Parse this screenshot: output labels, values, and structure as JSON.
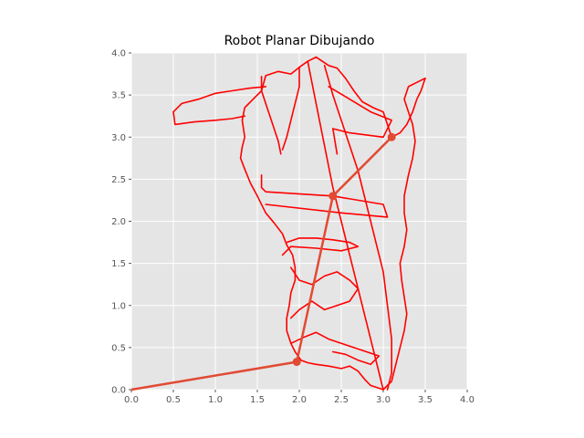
{
  "chart_data": {
    "type": "line",
    "title": "Robot Planar Dibujando",
    "xlabel": "",
    "ylabel": "",
    "xlim": [
      0,
      4
    ],
    "ylim": [
      0,
      4
    ],
    "xticks": [
      "0.0",
      "0.5",
      "1.0",
      "1.5",
      "2.0",
      "2.5",
      "3.0",
      "3.5",
      "4.0"
    ],
    "yticks": [
      "0.0",
      "0.5",
      "1.0",
      "1.5",
      "2.0",
      "2.5",
      "3.0",
      "3.5",
      "4.0"
    ],
    "grid": true,
    "series": [
      {
        "color": "#ff0000",
        "points": [
          [
            3.1,
            3.0
          ],
          [
            3.0,
            3.3
          ],
          [
            2.88,
            3.35
          ],
          [
            2.75,
            3.42
          ],
          [
            2.65,
            3.55
          ],
          [
            2.55,
            3.7
          ],
          [
            2.45,
            3.82
          ],
          [
            2.35,
            3.85
          ],
          [
            2.2,
            3.95
          ],
          [
            2.1,
            3.9
          ],
          [
            2.0,
            3.83
          ],
          [
            1.9,
            3.75
          ],
          [
            1.75,
            3.78
          ],
          [
            1.6,
            3.73
          ],
          [
            1.55,
            3.55
          ],
          [
            1.45,
            3.45
          ],
          [
            1.35,
            3.35
          ],
          [
            1.32,
            3.2
          ],
          [
            1.35,
            3.0
          ],
          [
            1.32,
            2.88
          ],
          [
            1.3,
            2.75
          ],
          [
            1.35,
            2.62
          ],
          [
            1.42,
            2.45
          ],
          [
            1.5,
            2.3
          ],
          [
            1.6,
            2.1
          ],
          [
            1.7,
            1.98
          ],
          [
            1.8,
            1.85
          ],
          [
            1.85,
            1.72
          ],
          [
            1.92,
            1.6
          ],
          [
            1.95,
            1.45
          ],
          [
            1.95,
            1.3
          ],
          [
            1.9,
            1.15
          ],
          [
            1.88,
            1.0
          ],
          [
            1.85,
            0.85
          ],
          [
            1.85,
            0.7
          ],
          [
            1.9,
            0.55
          ],
          [
            1.95,
            0.45
          ],
          [
            2.02,
            0.35
          ],
          [
            2.1,
            0.32
          ],
          [
            2.2,
            0.3
          ],
          [
            2.35,
            0.28
          ],
          [
            2.5,
            0.25
          ],
          [
            2.6,
            0.28
          ],
          [
            2.7,
            0.22
          ],
          [
            2.78,
            0.12
          ],
          [
            2.85,
            0.05
          ],
          [
            3.0,
            0.0
          ],
          [
            3.1,
            0.1
          ],
          [
            3.15,
            0.3
          ],
          [
            3.2,
            0.5
          ],
          [
            3.25,
            0.7
          ],
          [
            3.28,
            0.9
          ],
          [
            3.25,
            1.1
          ],
          [
            3.22,
            1.3
          ],
          [
            3.2,
            1.5
          ],
          [
            3.25,
            1.7
          ],
          [
            3.28,
            1.9
          ],
          [
            3.25,
            2.1
          ],
          [
            3.25,
            2.3
          ],
          [
            3.3,
            2.55
          ],
          [
            3.35,
            2.75
          ],
          [
            3.38,
            2.95
          ],
          [
            3.35,
            3.15
          ],
          [
            3.3,
            3.3
          ],
          [
            3.25,
            3.45
          ],
          [
            3.3,
            3.6
          ],
          [
            3.4,
            3.65
          ],
          [
            3.5,
            3.7
          ],
          [
            3.45,
            3.55
          ],
          [
            3.4,
            3.45
          ],
          [
            3.35,
            3.3
          ],
          [
            3.28,
            3.15
          ],
          [
            3.2,
            3.05
          ],
          [
            3.1,
            3.0
          ]
        ]
      },
      {
        "color": "#ff0000",
        "points": [
          [
            1.6,
            3.6
          ],
          [
            1.4,
            3.58
          ],
          [
            1.2,
            3.55
          ],
          [
            1.0,
            3.52
          ],
          [
            0.8,
            3.45
          ],
          [
            0.6,
            3.4
          ],
          [
            0.5,
            3.3
          ],
          [
            0.52,
            3.15
          ],
          [
            0.75,
            3.18
          ],
          [
            1.0,
            3.2
          ],
          [
            1.2,
            3.22
          ],
          [
            1.35,
            3.25
          ]
        ]
      },
      {
        "color": "#ff0000",
        "points": [
          [
            1.55,
            3.72
          ],
          [
            1.55,
            3.55
          ],
          [
            1.6,
            3.4
          ],
          [
            1.65,
            3.25
          ],
          [
            1.7,
            3.1
          ],
          [
            1.75,
            2.95
          ],
          [
            1.78,
            2.8
          ]
        ]
      },
      {
        "color": "#ff0000",
        "points": [
          [
            2.0,
            3.83
          ],
          [
            2.0,
            3.6
          ],
          [
            1.95,
            3.4
          ],
          [
            1.9,
            3.2
          ],
          [
            1.85,
            3.0
          ],
          [
            1.8,
            2.85
          ]
        ]
      },
      {
        "color": "#ff0000",
        "points": [
          [
            2.3,
            3.85
          ],
          [
            2.4,
            3.5
          ],
          [
            2.5,
            3.2
          ],
          [
            2.6,
            2.9
          ],
          [
            2.7,
            2.6
          ],
          [
            2.8,
            2.2
          ],
          [
            2.9,
            1.8
          ],
          [
            3.0,
            1.4
          ],
          [
            3.05,
            1.0
          ],
          [
            3.1,
            0.6
          ],
          [
            3.1,
            0.2
          ],
          [
            3.05,
            0.0
          ]
        ]
      },
      {
        "color": "#ff0000",
        "points": [
          [
            2.1,
            3.9
          ],
          [
            2.2,
            3.4
          ],
          [
            2.3,
            2.9
          ],
          [
            2.4,
            2.4
          ],
          [
            2.5,
            2.0
          ],
          [
            2.6,
            1.6
          ],
          [
            2.7,
            1.2
          ],
          [
            2.8,
            0.8
          ],
          [
            2.9,
            0.4
          ],
          [
            3.0,
            0.0
          ]
        ]
      },
      {
        "color": "#ff0000",
        "points": [
          [
            2.35,
            3.6
          ],
          [
            2.6,
            3.45
          ],
          [
            2.85,
            3.3
          ],
          [
            3.1,
            3.2
          ],
          [
            3.0,
            3.0
          ],
          [
            2.6,
            3.05
          ],
          [
            2.4,
            3.1
          ],
          [
            2.45,
            2.8
          ]
        ]
      },
      {
        "color": "#ff0000",
        "points": [
          [
            1.55,
            2.55
          ],
          [
            1.55,
            2.4
          ],
          [
            1.6,
            2.35
          ],
          [
            2.4,
            2.3
          ],
          [
            3.0,
            2.2
          ],
          [
            3.05,
            2.05
          ],
          [
            2.5,
            2.1
          ],
          [
            1.6,
            2.2
          ]
        ]
      },
      {
        "color": "#ff0000",
        "points": [
          [
            1.85,
            1.75
          ],
          [
            2.0,
            1.8
          ],
          [
            2.2,
            1.8
          ],
          [
            2.4,
            1.78
          ],
          [
            2.6,
            1.75
          ],
          [
            2.7,
            1.7
          ],
          [
            2.5,
            1.65
          ],
          [
            2.2,
            1.68
          ],
          [
            1.9,
            1.7
          ],
          [
            1.8,
            1.6
          ]
        ]
      },
      {
        "color": "#ff0000",
        "points": [
          [
            1.9,
            1.45
          ],
          [
            2.0,
            1.3
          ],
          [
            2.15,
            1.25
          ],
          [
            2.3,
            1.35
          ],
          [
            2.45,
            1.4
          ],
          [
            2.6,
            1.3
          ],
          [
            2.7,
            1.2
          ],
          [
            2.6,
            1.05
          ],
          [
            2.45,
            1.0
          ],
          [
            2.3,
            0.95
          ],
          [
            2.15,
            1.05
          ],
          [
            2.0,
            0.95
          ],
          [
            1.9,
            0.85
          ]
        ]
      },
      {
        "color": "#ff0000",
        "points": [
          [
            1.9,
            0.55
          ],
          [
            2.05,
            0.62
          ],
          [
            2.2,
            0.68
          ],
          [
            2.35,
            0.6
          ],
          [
            2.5,
            0.55
          ],
          [
            2.65,
            0.5
          ],
          [
            2.8,
            0.45
          ],
          [
            2.95,
            0.4
          ],
          [
            2.85,
            0.3
          ],
          [
            2.7,
            0.35
          ],
          [
            2.55,
            0.42
          ],
          [
            2.4,
            0.45
          ]
        ]
      }
    ],
    "arm": {
      "color": "#e24a33",
      "points": [
        [
          0.0,
          0.0
        ],
        [
          1.97,
          0.33
        ],
        [
          2.4,
          2.3
        ],
        [
          3.1,
          3.0
        ]
      ]
    }
  }
}
